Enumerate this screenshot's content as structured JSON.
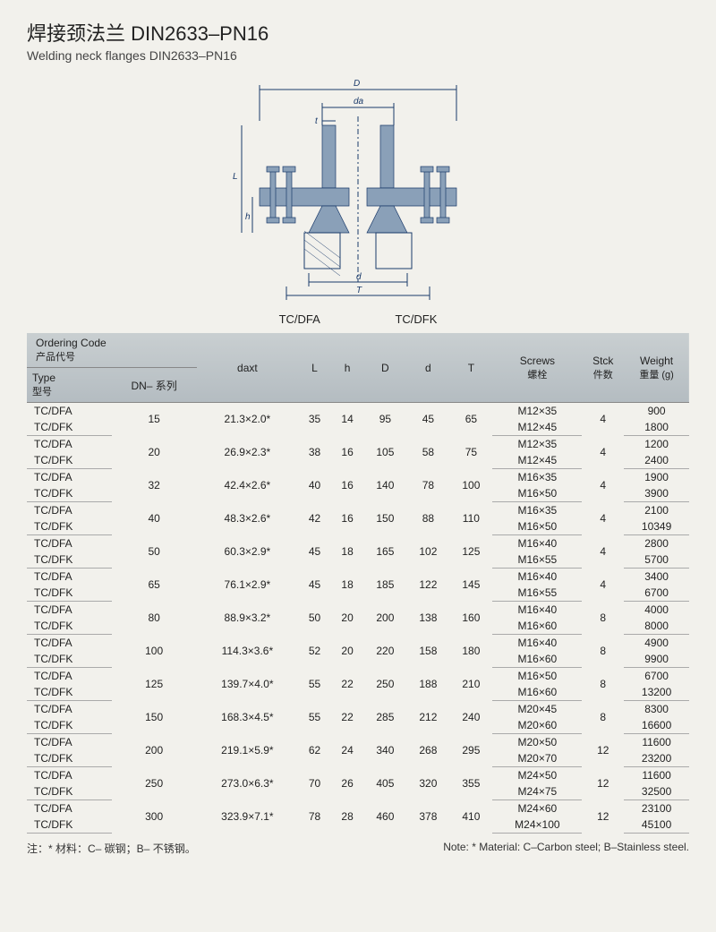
{
  "title_cn": "焊接颈法兰 DIN2633–PN16",
  "title_en": "Welding neck flanges DIN2633–PN16",
  "diagram": {
    "label_left": "TC/DFA",
    "label_right": "TC/DFK",
    "dims": [
      "D",
      "da",
      "t",
      "L",
      "h",
      "d",
      "T"
    ]
  },
  "headers": {
    "ordering": "Ordering Code",
    "ordering_sub": "产品代号",
    "type": "Type",
    "type_sub": "型号",
    "dn": "DN– 系列",
    "daxt": "daxt",
    "L": "L",
    "h": "h",
    "D": "D",
    "d": "d",
    "T": "T",
    "screws": "Screws",
    "screws_sub": "螺栓",
    "stck": "Stck",
    "stck_sub": "件数",
    "weight": "Weight",
    "weight_sub": "重量 (g)"
  },
  "rows": [
    {
      "dn": "15",
      "daxt": "21.3×2.0*",
      "L": "35",
      "h": "14",
      "D": "95",
      "d": "45",
      "T": "65",
      "s1": "M12×35",
      "s2": "M12×45",
      "stck": "4",
      "w1": "900",
      "w2": "1800"
    },
    {
      "dn": "20",
      "daxt": "26.9×2.3*",
      "L": "38",
      "h": "16",
      "D": "105",
      "d": "58",
      "T": "75",
      "s1": "M12×35",
      "s2": "M12×45",
      "stck": "4",
      "w1": "1200",
      "w2": "2400"
    },
    {
      "dn": "32",
      "daxt": "42.4×2.6*",
      "L": "40",
      "h": "16",
      "D": "140",
      "d": "78",
      "T": "100",
      "s1": "M16×35",
      "s2": "M16×50",
      "stck": "4",
      "w1": "1900",
      "w2": "3900"
    },
    {
      "dn": "40",
      "daxt": "48.3×2.6*",
      "L": "42",
      "h": "16",
      "D": "150",
      "d": "88",
      "T": "110",
      "s1": "M16×35",
      "s2": "M16×50",
      "stck": "4",
      "w1": "2100",
      "w2": "10349"
    },
    {
      "dn": "50",
      "daxt": "60.3×2.9*",
      "L": "45",
      "h": "18",
      "D": "165",
      "d": "102",
      "T": "125",
      "s1": "M16×40",
      "s2": "M16×55",
      "stck": "4",
      "w1": "2800",
      "w2": "5700"
    },
    {
      "dn": "65",
      "daxt": "76.1×2.9*",
      "L": "45",
      "h": "18",
      "D": "185",
      "d": "122",
      "T": "145",
      "s1": "M16×40",
      "s2": "M16×55",
      "stck": "4",
      "w1": "3400",
      "w2": "6700"
    },
    {
      "dn": "80",
      "daxt": "88.9×3.2*",
      "L": "50",
      "h": "20",
      "D": "200",
      "d": "138",
      "T": "160",
      "s1": "M16×40",
      "s2": "M16×60",
      "stck": "8",
      "w1": "4000",
      "w2": "8000"
    },
    {
      "dn": "100",
      "daxt": "114.3×3.6*",
      "L": "52",
      "h": "20",
      "D": "220",
      "d": "158",
      "T": "180",
      "s1": "M16×40",
      "s2": "M16×60",
      "stck": "8",
      "w1": "4900",
      "w2": "9900"
    },
    {
      "dn": "125",
      "daxt": "139.7×4.0*",
      "L": "55",
      "h": "22",
      "D": "250",
      "d": "188",
      "T": "210",
      "s1": "M16×50",
      "s2": "M16×60",
      "stck": "8",
      "w1": "6700",
      "w2": "13200"
    },
    {
      "dn": "150",
      "daxt": "168.3×4.5*",
      "L": "55",
      "h": "22",
      "D": "285",
      "d": "212",
      "T": "240",
      "s1": "M20×45",
      "s2": "M20×60",
      "stck": "8",
      "w1": "8300",
      "w2": "16600"
    },
    {
      "dn": "200",
      "daxt": "219.1×5.9*",
      "L": "62",
      "h": "24",
      "D": "340",
      "d": "268",
      "T": "295",
      "s1": "M20×50",
      "s2": "M20×70",
      "stck": "12",
      "w1": "11600",
      "w2": "23200"
    },
    {
      "dn": "250",
      "daxt": "273.0×6.3*",
      "L": "70",
      "h": "26",
      "D": "405",
      "d": "320",
      "T": "355",
      "s1": "M24×50",
      "s2": "M24×75",
      "stck": "12",
      "w1": "11600",
      "w2": "32500"
    },
    {
      "dn": "300",
      "daxt": "323.9×7.1*",
      "L": "78",
      "h": "28",
      "D": "460",
      "d": "378",
      "T": "410",
      "s1": "M24×60",
      "s2": "M24×100",
      "stck": "12",
      "w1": "23100",
      "w2": "45100"
    }
  ],
  "type_dfa": "TC/DFA",
  "type_dfk": "TC/DFK",
  "footnote_cn": "注：* 材料：C– 碳钢；B– 不锈钢。",
  "footnote_en": "Note: * Material: C–Carbon steel; B–Stainless steel."
}
